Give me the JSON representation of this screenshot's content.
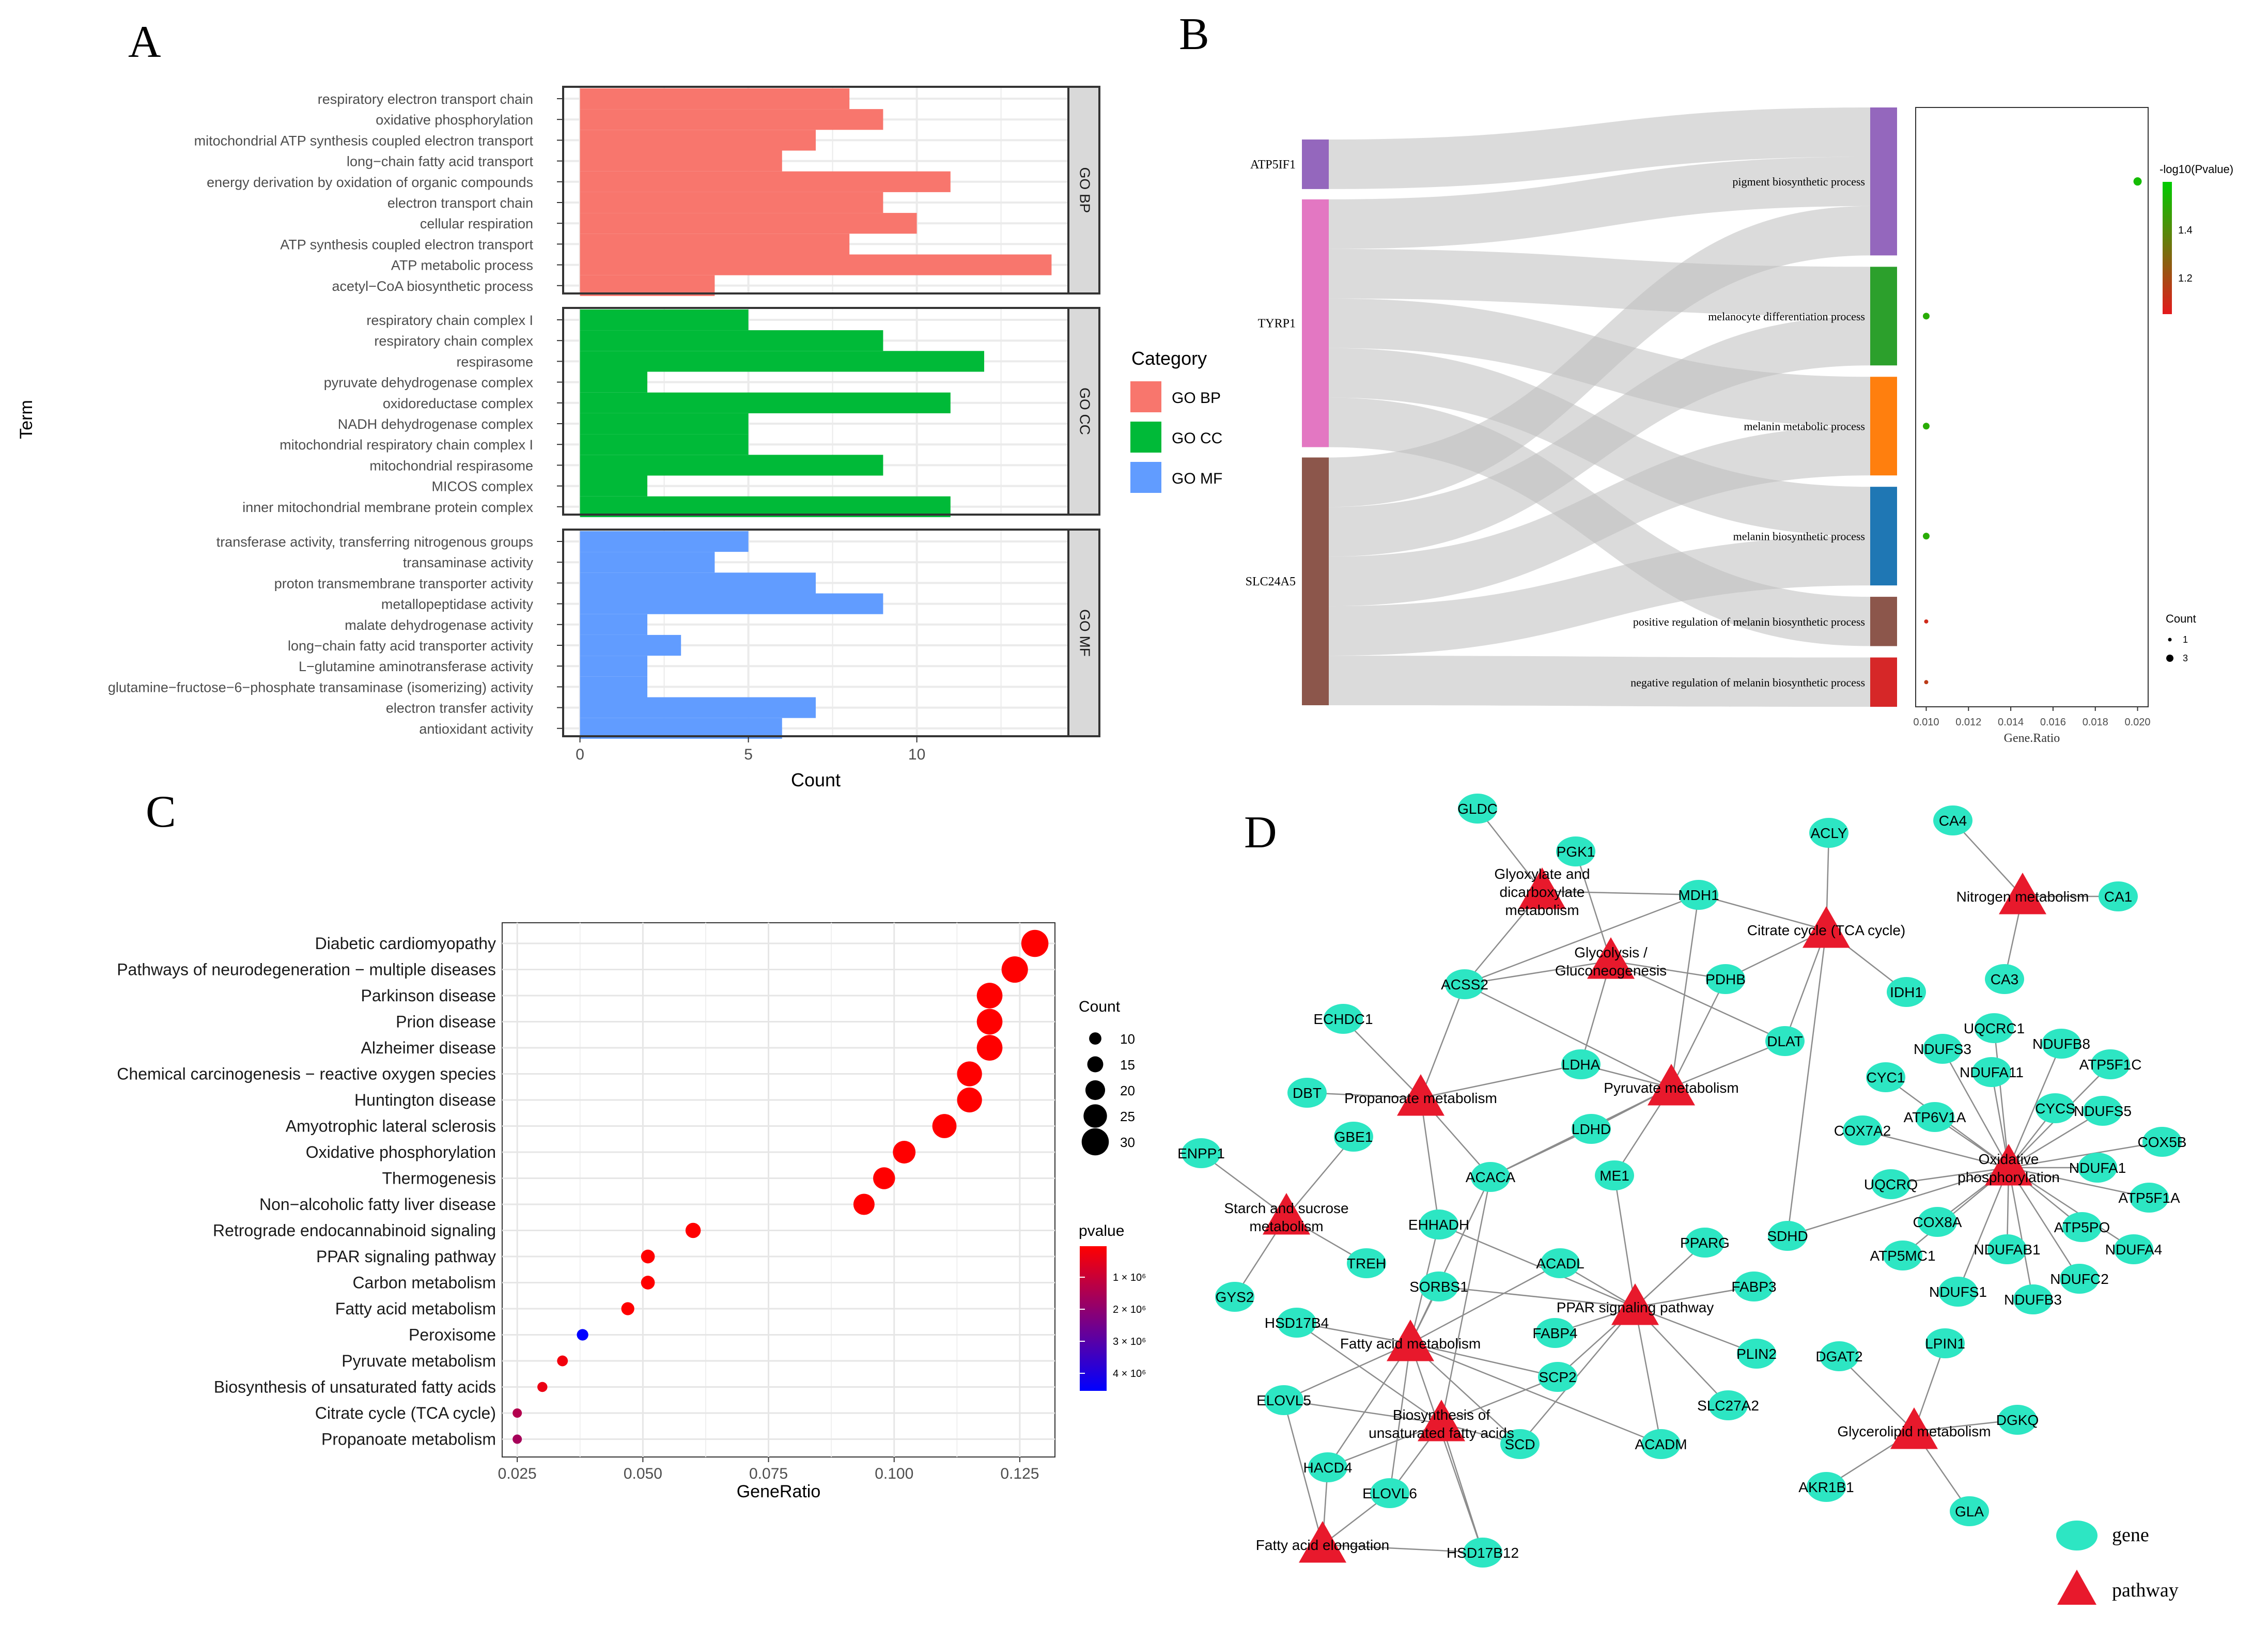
{
  "panels": {
    "a": "A",
    "b": "B",
    "c": "C",
    "d": "D"
  },
  "chart_data": [
    {
      "type": "bar",
      "panel": "A",
      "orientation": "horizontal",
      "xlabel": "Count",
      "ylabel": "Term",
      "xlim": [
        -0.5,
        14.5
      ],
      "xticks": [
        0,
        5,
        10
      ],
      "legend": {
        "title": "Category",
        "position": "right",
        "items": [
          {
            "label": "GO BP",
            "color": "#F8766D"
          },
          {
            "label": "GO CC",
            "color": "#00BA38"
          },
          {
            "label": "GO MF",
            "color": "#619CFF"
          }
        ]
      },
      "facets": [
        {
          "strip": "GO BP",
          "color": "#F8766D",
          "terms": [
            {
              "term": "respiratory electron transport chain",
              "count": 8
            },
            {
              "term": "oxidative phosphorylation",
              "count": 9
            },
            {
              "term": "mitochondrial ATP synthesis coupled electron transport",
              "count": 7
            },
            {
              "term": "long−chain fatty acid transport",
              "count": 6
            },
            {
              "term": "energy derivation by oxidation of organic compounds",
              "count": 11
            },
            {
              "term": "electron transport chain",
              "count": 9
            },
            {
              "term": "cellular respiration",
              "count": 10
            },
            {
              "term": "ATP synthesis coupled electron transport",
              "count": 8
            },
            {
              "term": "ATP metabolic process",
              "count": 14
            },
            {
              "term": "acetyl−CoA biosynthetic process",
              "count": 4
            }
          ]
        },
        {
          "strip": "GO CC",
          "color": "#00BA38",
          "terms": [
            {
              "term": "respiratory chain complex I",
              "count": 5
            },
            {
              "term": "respiratory chain complex",
              "count": 9
            },
            {
              "term": "respirasome",
              "count": 12
            },
            {
              "term": "pyruvate dehydrogenase complex",
              "count": 2
            },
            {
              "term": "oxidoreductase complex",
              "count": 11
            },
            {
              "term": "NADH dehydrogenase complex",
              "count": 5
            },
            {
              "term": "mitochondrial respiratory chain complex I",
              "count": 5
            },
            {
              "term": "mitochondrial respirasome",
              "count": 9
            },
            {
              "term": "MICOS complex",
              "count": 2
            },
            {
              "term": "inner mitochondrial membrane protein complex",
              "count": 11
            }
          ]
        },
        {
          "strip": "GO MF",
          "color": "#619CFF",
          "terms": [
            {
              "term": "transferase activity, transferring nitrogenous groups",
              "count": 5
            },
            {
              "term": "transaminase activity",
              "count": 4
            },
            {
              "term": "proton transmembrane transporter activity",
              "count": 7
            },
            {
              "term": "metallopeptidase activity",
              "count": 9
            },
            {
              "term": "malate dehydrogenase activity",
              "count": 2
            },
            {
              "term": "long−chain fatty acid transporter activity",
              "count": 3
            },
            {
              "term": "L−glutamine aminotransferase activity",
              "count": 2
            },
            {
              "term": "glutamine−fructose−6−phosphate transaminase (isomerizing) activity",
              "count": 2
            },
            {
              "term": "electron transfer activity",
              "count": 7
            },
            {
              "term": "antioxidant activity",
              "count": 6
            }
          ]
        }
      ]
    },
    {
      "type": "sankey-dot",
      "panel": "B",
      "genes": [
        {
          "name": "ATP5IF1",
          "color": "#9467BD",
          "weight": 1
        },
        {
          "name": "TYRP1",
          "color": "#E377C2",
          "weight": 5
        },
        {
          "name": "SLC24A5",
          "color": "#8C564B",
          "weight": 5
        }
      ],
      "terms": [
        {
          "name": "pigment biosynthetic process",
          "color": "#9467BD",
          "weight": 3,
          "gene_ratio": 0.02,
          "count": 3,
          "pvalue_level": 1.55
        },
        {
          "name": "melanocyte differentiation process",
          "color": "#2CA02C",
          "weight": 2,
          "gene_ratio": 0.01,
          "count": 2,
          "pvalue_level": 1.5
        },
        {
          "name": "melanin metabolic process",
          "color": "#FF7F0E",
          "weight": 2,
          "gene_ratio": 0.01,
          "count": 2,
          "pvalue_level": 1.5
        },
        {
          "name": "melanin biosynthetic process",
          "color": "#1F77B4",
          "weight": 2,
          "gene_ratio": 0.01,
          "count": 2,
          "pvalue_level": 1.5
        },
        {
          "name": "positive regulation of melanin biosynthetic process",
          "color": "#8C564B",
          "weight": 1,
          "gene_ratio": 0.01,
          "count": 1,
          "pvalue_level": 1.1
        },
        {
          "name": "negative regulation of melanin biosynthetic process",
          "color": "#D62728",
          "weight": 1,
          "gene_ratio": 0.01,
          "count": 1,
          "pvalue_level": 1.15
        }
      ],
      "links": [
        {
          "gene": "ATP5IF1",
          "term": "pigment biosynthetic process",
          "value": 1
        },
        {
          "gene": "TYRP1",
          "term": "pigment biosynthetic process",
          "value": 1
        },
        {
          "gene": "TYRP1",
          "term": "melanocyte differentiation process",
          "value": 1
        },
        {
          "gene": "TYRP1",
          "term": "melanin metabolic process",
          "value": 1
        },
        {
          "gene": "TYRP1",
          "term": "melanin biosynthetic process",
          "value": 1
        },
        {
          "gene": "TYRP1",
          "term": "positive regulation of melanin biosynthetic process",
          "value": 1
        },
        {
          "gene": "SLC24A5",
          "term": "pigment biosynthetic process",
          "value": 1
        },
        {
          "gene": "SLC24A5",
          "term": "melanocyte differentiation process",
          "value": 1
        },
        {
          "gene": "SLC24A5",
          "term": "melanin metabolic process",
          "value": 1
        },
        {
          "gene": "SLC24A5",
          "term": "melanin biosynthetic process",
          "value": 1
        },
        {
          "gene": "SLC24A5",
          "term": "negative regulation of melanin biosynthetic process",
          "value": 1
        }
      ],
      "xlabel": "Gene.Ratio",
      "xlim": [
        0.0095,
        0.0205
      ],
      "xticks": [
        0.01,
        0.012,
        0.014,
        0.016,
        0.018,
        0.02
      ],
      "xtick_labels": [
        "0.010",
        "0.012",
        "0.014",
        "0.016",
        "0.018",
        "0.020"
      ],
      "color_legend": {
        "title": "-log10(Pvalue)",
        "ticks": [
          1.4,
          1.2
        ],
        "tick_labels": [
          "1.4",
          "1.2"
        ],
        "range": [
          1.05,
          1.6
        ],
        "low_color": "#E41A1C",
        "high_color": "#00CC00"
      },
      "size_legend": {
        "title": "Count",
        "items": [
          {
            "label": "1",
            "value": 1
          },
          {
            "label": "3",
            "value": 3
          }
        ]
      }
    },
    {
      "type": "scatter",
      "panel": "C",
      "xlabel": "GeneRatio",
      "xlim": [
        0.022,
        0.132
      ],
      "xticks": [
        0.025,
        0.05,
        0.075,
        0.1,
        0.125
      ],
      "xtick_labels": [
        "0.025",
        "0.050",
        "0.075",
        "0.100",
        "0.125"
      ],
      "categories": [
        "Diabetic cardiomyopathy",
        "Pathways of neurodegeneration − multiple diseases",
        "Parkinson disease",
        "Prion disease",
        "Alzheimer disease",
        "Chemical carcinogenesis − reactive oxygen species",
        "Huntington disease",
        "Amyotrophic lateral sclerosis",
        "Oxidative phosphorylation",
        "Thermogenesis",
        "Non−alcoholic fatty liver disease",
        "Retrograde endocannabinoid signaling",
        "PPAR signaling pathway",
        "Carbon metabolism",
        "Fatty acid metabolism",
        "Peroxisome",
        "Pyruvate metabolism",
        "Biosynthesis of unsaturated fatty acids",
        "Citrate cycle (TCA cycle)",
        "Propanoate metabolism"
      ],
      "gene_ratio": [
        0.128,
        0.124,
        0.119,
        0.119,
        0.119,
        0.115,
        0.115,
        0.11,
        0.102,
        0.098,
        0.094,
        0.06,
        0.051,
        0.051,
        0.047,
        0.038,
        0.034,
        0.03,
        0.025,
        0.025
      ],
      "count": [
        30,
        29,
        28,
        28,
        28,
        27,
        27,
        26,
        24,
        23,
        22,
        14,
        12,
        12,
        11,
        9,
        8,
        7,
        6,
        6
      ],
      "pvalue_color_pos": [
        0,
        0,
        0,
        0,
        0,
        0,
        0,
        0,
        0,
        0,
        0,
        0,
        0,
        0,
        0,
        1,
        0.05,
        0.08,
        0.3,
        0.35
      ],
      "size_legend": {
        "title": "Count",
        "items": [
          {
            "label": "10",
            "value": 10
          },
          {
            "label": "15",
            "value": 15
          },
          {
            "label": "20",
            "value": 20
          },
          {
            "label": "25",
            "value": 25
          },
          {
            "label": "30",
            "value": 30
          }
        ]
      },
      "color_legend": {
        "title": "pvalue",
        "tick_labels": [
          "1 × 10⁶",
          "2 × 10⁶",
          "3 × 10⁶",
          "4 × 10⁶"
        ],
        "low_color": "#FF0000",
        "high_color": "#0000FF"
      }
    },
    {
      "type": "network",
      "panel": "D",
      "legend": [
        {
          "label": "gene",
          "shape": "ellipse",
          "color": "#2DE6C3"
        },
        {
          "label": "pathway",
          "shape": "triangle",
          "color": "#E8192C"
        }
      ],
      "pathways": [
        {
          "id": "p_glyox",
          "label": "Glyoxylate and\ndicarboxylate\nmetabolism"
        },
        {
          "id": "p_gly",
          "label": "Glycolysis /\nGluconeogenesis"
        },
        {
          "id": "p_tca",
          "label": "Citrate cycle (TCA cycle)"
        },
        {
          "id": "p_nit",
          "label": "Nitrogen metabolism"
        },
        {
          "id": "p_prop",
          "label": "Propanoate metabolism"
        },
        {
          "id": "p_pyr",
          "label": "Pyruvate metabolism"
        },
        {
          "id": "p_oxphos",
          "label": "Oxidative\nphosphorylation"
        },
        {
          "id": "p_starch",
          "label": "Starch and sucrose\nmetabolism"
        },
        {
          "id": "p_ppar",
          "label": "PPAR signaling pathway"
        },
        {
          "id": "p_fam",
          "label": "Fatty acid metabolism"
        },
        {
          "id": "p_bios",
          "label": "Biosynthesis of\nunsaturated fatty acids"
        },
        {
          "id": "p_glycero",
          "label": "Glycerolipid metabolism"
        },
        {
          "id": "p_elong",
          "label": "Fatty acid elongation"
        }
      ],
      "genes": [
        "GLDC",
        "PGK1",
        "MDH1",
        "ACLY",
        "CA4",
        "CA1",
        "CA3",
        "IDH1",
        "PDHB",
        "ACSS2",
        "ECHDC1",
        "DLAT",
        "DBT",
        "LDHA",
        "UQCRC1",
        "NDUFS3",
        "NDUFB8",
        "ATP5F1C",
        "NDUFA11",
        "CYC1",
        "ATP6V1A",
        "CYCS",
        "NDUFS5",
        "COX7A2",
        "COX5B",
        "NDUFA1",
        "UQCRQ",
        "ATP5F1A",
        "COX8A",
        "ATP5PO",
        "SDHD",
        "NDUFAB1",
        "NDUFA4",
        "ATP5MC1",
        "NDUFC2",
        "NDUFS1",
        "NDUFB3",
        "GBE1",
        "ENPP1",
        "LDHD",
        "ME1",
        "ACACA",
        "EHHADH",
        "TREH",
        "GYS2",
        "PPARG",
        "SORBS1",
        "ACADL",
        "FABP3",
        "HSD17B4",
        "FABP4",
        "SCP2",
        "PLIN2",
        "ELOVL5",
        "SLC27A2",
        "SCD",
        "ACADM",
        "HACD4",
        "ELOVL6",
        "HSD17B12",
        "DGAT2",
        "LPIN1",
        "DGKQ",
        "AKR1B1",
        "GLA"
      ],
      "edges": [
        [
          "p_glyox",
          "GLDC"
        ],
        [
          "p_glyox",
          "MDH1"
        ],
        [
          "p_glyox",
          "ACSS2"
        ],
        [
          "p_gly",
          "PGK1"
        ],
        [
          "p_gly",
          "ACSS2"
        ],
        [
          "p_gly",
          "PDHB"
        ],
        [
          "p_gly",
          "LDHA"
        ],
        [
          "p_gly",
          "DLAT"
        ],
        [
          "p_tca",
          "ACLY"
        ],
        [
          "p_tca",
          "MDH1"
        ],
        [
          "p_tca",
          "IDH1"
        ],
        [
          "p_tca",
          "PDHB"
        ],
        [
          "p_tca",
          "DLAT"
        ],
        [
          "p_tca",
          "SDHD"
        ],
        [
          "p_nit",
          "CA4"
        ],
        [
          "p_nit",
          "CA1"
        ],
        [
          "p_nit",
          "CA3"
        ],
        [
          "p_prop",
          "ACSS2"
        ],
        [
          "p_prop",
          "ECHDC1"
        ],
        [
          "p_prop",
          "DBT"
        ],
        [
          "p_prop",
          "LDHA"
        ],
        [
          "p_prop",
          "EHHADH"
        ],
        [
          "p_prop",
          "ACACA"
        ],
        [
          "p_pyr",
          "MDH1"
        ],
        [
          "p_pyr",
          "PDHB"
        ],
        [
          "p_pyr",
          "DLAT"
        ],
        [
          "p_pyr",
          "LDHA"
        ],
        [
          "p_pyr",
          "LDHD"
        ],
        [
          "p_pyr",
          "ME1"
        ],
        [
          "p_pyr",
          "ACACA"
        ],
        [
          "p_pyr",
          "ACSS2"
        ],
        [
          "p_oxphos",
          "UQCRC1"
        ],
        [
          "p_oxphos",
          "NDUFS3"
        ],
        [
          "p_oxphos",
          "NDUFB8"
        ],
        [
          "p_oxphos",
          "ATP5F1C"
        ],
        [
          "p_oxphos",
          "NDUFA11"
        ],
        [
          "p_oxphos",
          "CYC1"
        ],
        [
          "p_oxphos",
          "ATP6V1A"
        ],
        [
          "p_oxphos",
          "CYCS"
        ],
        [
          "p_oxphos",
          "NDUFS5"
        ],
        [
          "p_oxphos",
          "COX7A2"
        ],
        [
          "p_oxphos",
          "COX5B"
        ],
        [
          "p_oxphos",
          "NDUFA1"
        ],
        [
          "p_oxphos",
          "UQCRQ"
        ],
        [
          "p_oxphos",
          "ATP5F1A"
        ],
        [
          "p_oxphos",
          "COX8A"
        ],
        [
          "p_oxphos",
          "ATP5PO"
        ],
        [
          "p_oxphos",
          "SDHD"
        ],
        [
          "p_oxphos",
          "NDUFAB1"
        ],
        [
          "p_oxphos",
          "NDUFA4"
        ],
        [
          "p_oxphos",
          "ATP5MC1"
        ],
        [
          "p_oxphos",
          "NDUFC2"
        ],
        [
          "p_oxphos",
          "NDUFS1"
        ],
        [
          "p_oxphos",
          "NDUFB3"
        ],
        [
          "p_starch",
          "GBE1"
        ],
        [
          "p_starch",
          "ENPP1"
        ],
        [
          "p_starch",
          "TREH"
        ],
        [
          "p_starch",
          "GYS2"
        ],
        [
          "p_ppar",
          "PPARG"
        ],
        [
          "p_ppar",
          "FABP3"
        ],
        [
          "p_ppar",
          "PLIN2"
        ],
        [
          "p_ppar",
          "SLC27A2"
        ],
        [
          "p_ppar",
          "ACADM"
        ],
        [
          "p_ppar",
          "SCD"
        ],
        [
          "p_ppar",
          "SCP2"
        ],
        [
          "p_ppar",
          "ACADL"
        ],
        [
          "p_ppar",
          "FABP4"
        ],
        [
          "p_ppar",
          "SORBS1"
        ],
        [
          "p_ppar",
          "EHHADH"
        ],
        [
          "p_ppar",
          "ME1"
        ],
        [
          "p_fam",
          "EHHADH"
        ],
        [
          "p_fam",
          "ACACA"
        ],
        [
          "p_fam",
          "ACADL"
        ],
        [
          "p_fam",
          "SORBS1"
        ],
        [
          "p_fam",
          "HSD17B4"
        ],
        [
          "p_fam",
          "SCP2"
        ],
        [
          "p_fam",
          "ELOVL5"
        ],
        [
          "p_fam",
          "HACD4"
        ],
        [
          "p_fam",
          "ELOVL6"
        ],
        [
          "p_fam",
          "HSD17B12"
        ],
        [
          "p_fam",
          "ACADM"
        ],
        [
          "p_fam",
          "SCD"
        ],
        [
          "p_bios",
          "SCD"
        ],
        [
          "p_bios",
          "SCP2"
        ],
        [
          "p_bios",
          "ELOVL5"
        ],
        [
          "p_bios",
          "ELOVL6"
        ],
        [
          "p_bios",
          "HACD4"
        ],
        [
          "p_bios",
          "HSD17B12"
        ],
        [
          "p_bios",
          "HSD17B4"
        ],
        [
          "p_bios",
          "ACACA"
        ],
        [
          "p_elong",
          "ELOVL5"
        ],
        [
          "p_elong",
          "HACD4"
        ],
        [
          "p_elong",
          "ELOVL6"
        ],
        [
          "p_elong",
          "HSD17B12"
        ],
        [
          "p_glycero",
          "DGAT2"
        ],
        [
          "p_glycero",
          "LPIN1"
        ],
        [
          "p_glycero",
          "DGKQ"
        ],
        [
          "p_glycero",
          "AKR1B1"
        ],
        [
          "p_glycero",
          "GLA"
        ],
        [
          "MDH1",
          "ACSS2"
        ],
        [
          "LDHD",
          "ACACA"
        ]
      ]
    }
  ]
}
